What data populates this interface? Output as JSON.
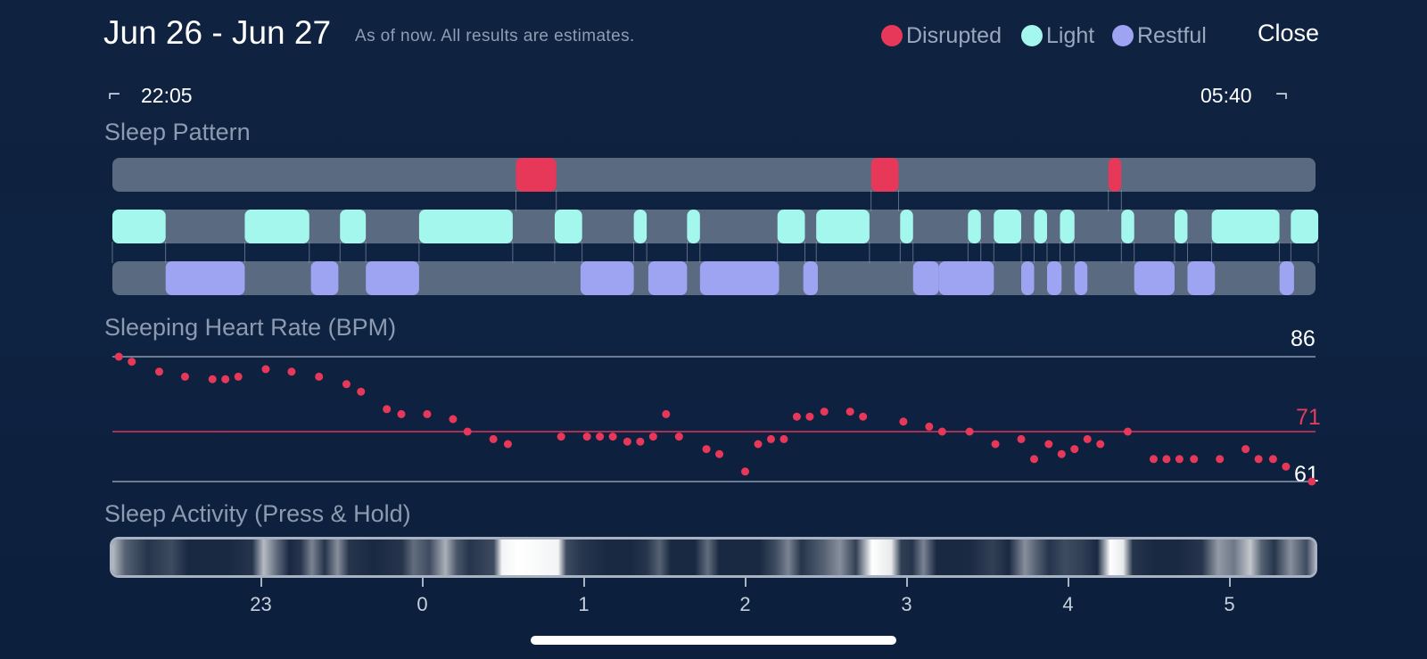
{
  "header": {
    "title": "Jun 26 - Jun 27",
    "subtitle": "As of now. All results are estimates.",
    "close_label": "Close"
  },
  "legend": [
    {
      "label": "Disrupted",
      "color": "#e8385a"
    },
    {
      "label": "Light",
      "color": "#a4f7ec"
    },
    {
      "label": "Restful",
      "color": "#9ea4f2"
    }
  ],
  "times": {
    "start": "22:05",
    "end": "05:40"
  },
  "sections": {
    "sleep_pattern": "Sleep Pattern",
    "heart_rate": "Sleeping Heart Rate (BPM)",
    "activity": "Sleep Activity (Press & Hold)"
  },
  "heart_rate_lines": {
    "max": "86",
    "avg": "71",
    "min": "61"
  },
  "colors": {
    "disrupted": "#e8385a",
    "light": "#a4f7ec",
    "restful": "#9ea4f2",
    "track": "#5a6a80",
    "avg_line": "#d9385a"
  },
  "hour_ticks": [
    "23",
    "0",
    "1",
    "2",
    "3",
    "4",
    "5"
  ],
  "chart_data": {
    "type": "scatter",
    "title": "Sleeping Heart Rate (BPM)",
    "x_unit": "hours since midnight",
    "xlim": [
      -1.92,
      5.55
    ],
    "ylim": [
      61,
      86
    ],
    "reference_lines": [
      86,
      71,
      61
    ],
    "points": [
      [
        -1.88,
        86
      ],
      [
        -1.8,
        85
      ],
      [
        -1.63,
        83
      ],
      [
        -1.47,
        82
      ],
      [
        -1.3,
        81.5
      ],
      [
        -1.22,
        81.5
      ],
      [
        -1.14,
        82
      ],
      [
        -0.97,
        83.5
      ],
      [
        -0.81,
        83
      ],
      [
        -0.64,
        82
      ],
      [
        -0.47,
        80.5
      ],
      [
        -0.38,
        79
      ],
      [
        -0.22,
        75.5
      ],
      [
        -0.13,
        74.5
      ],
      [
        0.03,
        74.5
      ],
      [
        0.19,
        73.5
      ],
      [
        0.28,
        71
      ],
      [
        0.44,
        69.5
      ],
      [
        0.53,
        68.5
      ],
      [
        0.86,
        70
      ],
      [
        1.02,
        70
      ],
      [
        1.1,
        70
      ],
      [
        1.18,
        70
      ],
      [
        1.27,
        69
      ],
      [
        1.35,
        69
      ],
      [
        1.43,
        70
      ],
      [
        1.51,
        74.5
      ],
      [
        1.59,
        70
      ],
      [
        1.76,
        67.5
      ],
      [
        1.84,
        66.5
      ],
      [
        2.0,
        63
      ],
      [
        2.08,
        68.5
      ],
      [
        2.16,
        69.5
      ],
      [
        2.24,
        69.5
      ],
      [
        2.32,
        74
      ],
      [
        2.4,
        74
      ],
      [
        2.49,
        75
      ],
      [
        2.65,
        75
      ],
      [
        2.73,
        74
      ],
      [
        2.98,
        73
      ],
      [
        3.14,
        72
      ],
      [
        3.22,
        71
      ],
      [
        3.39,
        71
      ],
      [
        3.55,
        68.5
      ],
      [
        3.71,
        69.5
      ],
      [
        3.79,
        65.5
      ],
      [
        3.88,
        68.5
      ],
      [
        3.96,
        66.5
      ],
      [
        4.04,
        67.5
      ],
      [
        4.12,
        69.5
      ],
      [
        4.2,
        68.5
      ],
      [
        4.37,
        71
      ],
      [
        4.53,
        65.5
      ],
      [
        4.61,
        65.5
      ],
      [
        4.69,
        65.5
      ],
      [
        4.78,
        65.5
      ],
      [
        4.94,
        65.5
      ],
      [
        5.1,
        67.5
      ],
      [
        5.18,
        65.5
      ],
      [
        5.27,
        65.5
      ],
      [
        5.35,
        64
      ],
      [
        5.51,
        61
      ]
    ]
  },
  "sleep_pattern": {
    "disrupted": [
      [
        0.58,
        0.83
      ],
      [
        2.78,
        2.95
      ],
      [
        4.25,
        4.33
      ]
    ],
    "light": [
      [
        -1.92,
        -1.59
      ],
      [
        -1.1,
        -0.7
      ],
      [
        -0.51,
        -0.35
      ],
      [
        -0.02,
        0.56
      ],
      [
        0.82,
        0.99
      ],
      [
        1.31,
        1.39
      ],
      [
        1.64,
        1.72
      ],
      [
        2.2,
        2.37
      ],
      [
        2.44,
        2.77
      ],
      [
        2.96,
        3.04
      ],
      [
        3.38,
        3.46
      ],
      [
        3.54,
        3.71
      ],
      [
        3.79,
        3.87
      ],
      [
        3.95,
        4.04
      ],
      [
        4.33,
        4.41
      ],
      [
        4.66,
        4.74
      ],
      [
        4.89,
        5.31
      ],
      [
        5.38,
        5.55
      ]
    ],
    "restful": [
      [
        -1.59,
        -1.1
      ],
      [
        -0.69,
        -0.52
      ],
      [
        -0.35,
        -0.02
      ],
      [
        0.98,
        1.31
      ],
      [
        1.4,
        1.64
      ],
      [
        1.72,
        2.21
      ],
      [
        2.36,
        2.45
      ],
      [
        3.04,
        3.2
      ],
      [
        3.2,
        3.54
      ],
      [
        3.46,
        3.54
      ],
      [
        3.71,
        3.79
      ],
      [
        3.87,
        3.96
      ],
      [
        4.04,
        4.12
      ],
      [
        4.41,
        4.66
      ],
      [
        4.74,
        4.91
      ],
      [
        5.31,
        5.4
      ]
    ]
  },
  "activity_intensity": [
    [
      -1.92,
      0.7
    ],
    [
      -1.84,
      0.3
    ],
    [
      -1.7,
      0.1
    ],
    [
      -1.55,
      0.2
    ],
    [
      -1.45,
      0.05
    ],
    [
      -1.2,
      0.05
    ],
    [
      -1.05,
      0.1
    ],
    [
      -0.98,
      0.7
    ],
    [
      -0.9,
      0.35
    ],
    [
      -0.82,
      0.05
    ],
    [
      -0.75,
      0.1
    ],
    [
      -0.68,
      0.45
    ],
    [
      -0.6,
      0.1
    ],
    [
      -0.52,
      0.5
    ],
    [
      -0.45,
      0.1
    ],
    [
      -0.3,
      0.05
    ],
    [
      -0.12,
      0.1
    ],
    [
      -0.05,
      0.35
    ],
    [
      0.05,
      0.2
    ],
    [
      0.15,
      0.65
    ],
    [
      0.22,
      0.25
    ],
    [
      0.3,
      0.1
    ],
    [
      0.45,
      0.2
    ],
    [
      0.5,
      0.95
    ],
    [
      0.6,
      1.0
    ],
    [
      0.85,
      0.95
    ],
    [
      0.9,
      0.2
    ],
    [
      1.0,
      0.1
    ],
    [
      1.15,
      0.05
    ],
    [
      1.3,
      0.05
    ],
    [
      1.4,
      0.1
    ],
    [
      1.48,
      0.3
    ],
    [
      1.55,
      0.05
    ],
    [
      1.7,
      0.05
    ],
    [
      1.78,
      0.35
    ],
    [
      1.85,
      0.05
    ],
    [
      2.1,
      0.05
    ],
    [
      2.2,
      0.2
    ],
    [
      2.28,
      0.45
    ],
    [
      2.36,
      0.1
    ],
    [
      2.5,
      0.3
    ],
    [
      2.6,
      0.5
    ],
    [
      2.7,
      0.15
    ],
    [
      2.8,
      1.0
    ],
    [
      2.92,
      0.9
    ],
    [
      2.98,
      0.15
    ],
    [
      3.05,
      0.1
    ],
    [
      3.12,
      0.45
    ],
    [
      3.2,
      0.05
    ],
    [
      3.4,
      0.05
    ],
    [
      3.55,
      0.15
    ],
    [
      3.65,
      0.05
    ],
    [
      3.75,
      0.5
    ],
    [
      3.82,
      0.3
    ],
    [
      3.9,
      0.1
    ],
    [
      4.0,
      0.2
    ],
    [
      4.1,
      0.15
    ],
    [
      4.2,
      0.05
    ],
    [
      4.28,
      1.0
    ],
    [
      4.36,
      0.9
    ],
    [
      4.42,
      0.1
    ],
    [
      4.55,
      0.05
    ],
    [
      4.7,
      0.05
    ],
    [
      4.85,
      0.1
    ],
    [
      4.95,
      0.55
    ],
    [
      5.05,
      0.4
    ],
    [
      5.15,
      0.75
    ],
    [
      5.22,
      0.3
    ],
    [
      5.3,
      0.1
    ],
    [
      5.4,
      0.5
    ],
    [
      5.5,
      0.2
    ],
    [
      5.55,
      0.6
    ]
  ]
}
